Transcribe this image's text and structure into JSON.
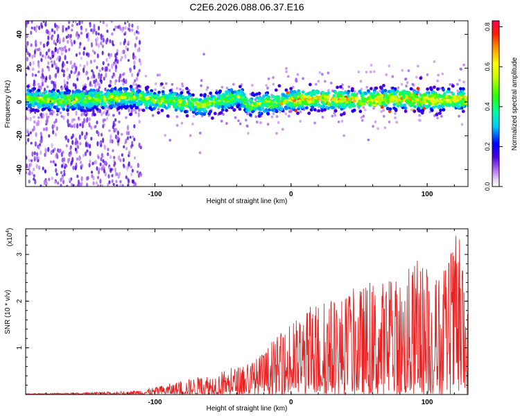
{
  "title": "C2E6.2026.088.06.37.E16",
  "chart_data": [
    {
      "type": "heatmap",
      "xlabel": "Height of straight line (km)",
      "ylabel": "Frequency (Hz)",
      "xlim": [
        -195,
        130
      ],
      "ylim": [
        -50,
        48
      ],
      "x_ticks": [
        -100,
        0,
        100
      ],
      "x_tick_labels": [
        "-100",
        "0",
        "100"
      ],
      "y_ticks": [
        -40,
        -20,
        0,
        20,
        40
      ],
      "y_tick_labels": [
        "-40",
        "-20",
        "0",
        "20",
        "40"
      ],
      "band_center": [
        {
          "x": -195,
          "y": 2
        },
        {
          "x": -170,
          "y": 1
        },
        {
          "x": -140,
          "y": 2
        },
        {
          "x": -120,
          "y": 3
        },
        {
          "x": -100,
          "y": 1
        },
        {
          "x": -80,
          "y": 0
        },
        {
          "x": -65,
          "y": -2
        },
        {
          "x": -50,
          "y": 1
        },
        {
          "x": -38,
          "y": 3
        },
        {
          "x": -30,
          "y": -2
        },
        {
          "x": -10,
          "y": 0
        },
        {
          "x": 0,
          "y": 1
        },
        {
          "x": 20,
          "y": 2
        },
        {
          "x": 40,
          "y": 1
        },
        {
          "x": 60,
          "y": 1
        },
        {
          "x": 80,
          "y": 2
        },
        {
          "x": 100,
          "y": 1
        },
        {
          "x": 130,
          "y": 2
        }
      ],
      "colorbar": {
        "label": "Normalized spectral amplitude",
        "range": [
          0,
          0.83
        ],
        "ticks": [
          0.0,
          0.2,
          0.4,
          0.6,
          0.8
        ],
        "tick_labels": [
          "0.0",
          "0.2",
          "0.4",
          "0.6",
          "0.8"
        ]
      }
    },
    {
      "type": "line",
      "xlabel": "Height of straight line (km)",
      "ylabel": "SNR (10 * v/v)",
      "multiplier_label": "(x10",
      "multiplier_exp": "4",
      "multiplier_close": ")",
      "xlim": [
        -195,
        130
      ],
      "ylim": [
        0,
        3.55
      ],
      "x_ticks": [
        -100,
        0,
        100
      ],
      "x_tick_labels": [
        "-100",
        "0",
        "100"
      ],
      "y_ticks": [
        1,
        2,
        3
      ],
      "y_tick_labels": [
        "1",
        "2",
        "3"
      ],
      "color": "#e82020",
      "envelope": [
        {
          "x": -195,
          "y": 0.02
        },
        {
          "x": -150,
          "y": 0.04
        },
        {
          "x": -120,
          "y": 0.07
        },
        {
          "x": -100,
          "y": 0.16
        },
        {
          "x": -80,
          "y": 0.3
        },
        {
          "x": -60,
          "y": 0.45
        },
        {
          "x": -40,
          "y": 0.6
        },
        {
          "x": -25,
          "y": 0.8
        },
        {
          "x": -15,
          "y": 1.1
        },
        {
          "x": 0,
          "y": 1.55
        },
        {
          "x": 20,
          "y": 2.05
        },
        {
          "x": 40,
          "y": 2.2
        },
        {
          "x": 60,
          "y": 2.45
        },
        {
          "x": 80,
          "y": 2.55
        },
        {
          "x": 95,
          "y": 3.0
        },
        {
          "x": 110,
          "y": 2.5
        },
        {
          "x": 118,
          "y": 3.2
        },
        {
          "x": 123,
          "y": 3.55
        },
        {
          "x": 130,
          "y": 1.85
        }
      ]
    }
  ]
}
